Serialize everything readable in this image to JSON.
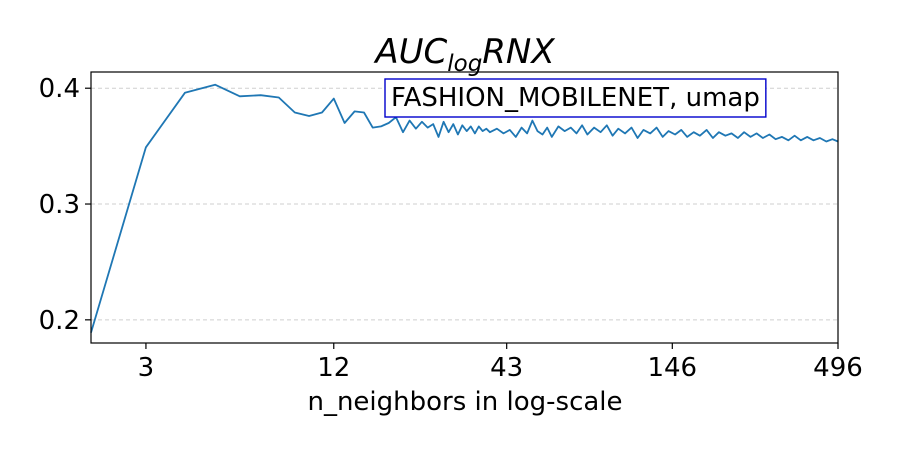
{
  "chart_data": {
    "type": "line",
    "title_main": "AUC",
    "title_sub": "log",
    "title_tail": "RNX",
    "xlabel": "n_neighbors in log-scale",
    "ylabel": "",
    "x_scale": "log",
    "xlim": [
      2,
      496
    ],
    "ylim": [
      0.18,
      0.414
    ],
    "x_ticks": [
      {
        "value": 3,
        "label": "3"
      },
      {
        "value": 12,
        "label": "12"
      },
      {
        "value": 43,
        "label": "43"
      },
      {
        "value": 146,
        "label": "146"
      },
      {
        "value": 496,
        "label": "496"
      }
    ],
    "y_ticks": [
      {
        "value": 0.2,
        "label": "0.2"
      },
      {
        "value": 0.3,
        "label": "0.3"
      },
      {
        "value": 0.4,
        "label": "0.4"
      }
    ],
    "grid": "horizontal-dashed",
    "legend": {
      "text": "FASHION_MOBILENET, umap",
      "placement": "top-right",
      "border_color": "#0000cc"
    },
    "series": [
      {
        "color": "#1f77b4",
        "x": [
          2,
          3,
          4,
          5,
          6,
          7,
          8,
          9,
          10,
          11,
          12,
          13,
          14,
          15,
          16,
          17,
          18,
          19,
          20,
          21,
          22,
          23,
          24,
          25,
          26,
          27,
          28,
          29,
          30,
          31,
          32,
          33,
          34,
          35,
          36,
          37,
          38,
          40,
          42,
          44,
          46,
          48,
          50,
          52,
          54,
          56,
          58,
          60,
          63,
          66,
          69,
          72,
          75,
          78,
          82,
          86,
          90,
          94,
          98,
          103,
          108,
          113,
          118,
          124,
          130,
          136,
          142,
          149,
          156,
          163,
          171,
          179,
          188,
          197,
          206,
          216,
          226,
          237,
          248,
          260,
          272,
          285,
          299,
          313,
          328,
          344,
          360,
          377,
          395,
          414,
          434,
          455,
          476,
          496
        ],
        "y": [
          0.189,
          0.349,
          0.396,
          0.403,
          0.393,
          0.394,
          0.392,
          0.379,
          0.376,
          0.379,
          0.391,
          0.37,
          0.38,
          0.379,
          0.366,
          0.367,
          0.37,
          0.375,
          0.362,
          0.372,
          0.365,
          0.371,
          0.366,
          0.369,
          0.358,
          0.371,
          0.362,
          0.369,
          0.36,
          0.368,
          0.363,
          0.367,
          0.361,
          0.367,
          0.363,
          0.365,
          0.362,
          0.365,
          0.361,
          0.364,
          0.358,
          0.366,
          0.361,
          0.372,
          0.363,
          0.36,
          0.366,
          0.358,
          0.367,
          0.363,
          0.366,
          0.361,
          0.368,
          0.36,
          0.366,
          0.362,
          0.368,
          0.359,
          0.365,
          0.361,
          0.366,
          0.357,
          0.364,
          0.361,
          0.366,
          0.358,
          0.363,
          0.36,
          0.364,
          0.358,
          0.362,
          0.359,
          0.364,
          0.357,
          0.362,
          0.359,
          0.361,
          0.357,
          0.362,
          0.358,
          0.361,
          0.357,
          0.36,
          0.356,
          0.358,
          0.355,
          0.359,
          0.355,
          0.358,
          0.355,
          0.357,
          0.354,
          0.356,
          0.354
        ]
      }
    ]
  }
}
